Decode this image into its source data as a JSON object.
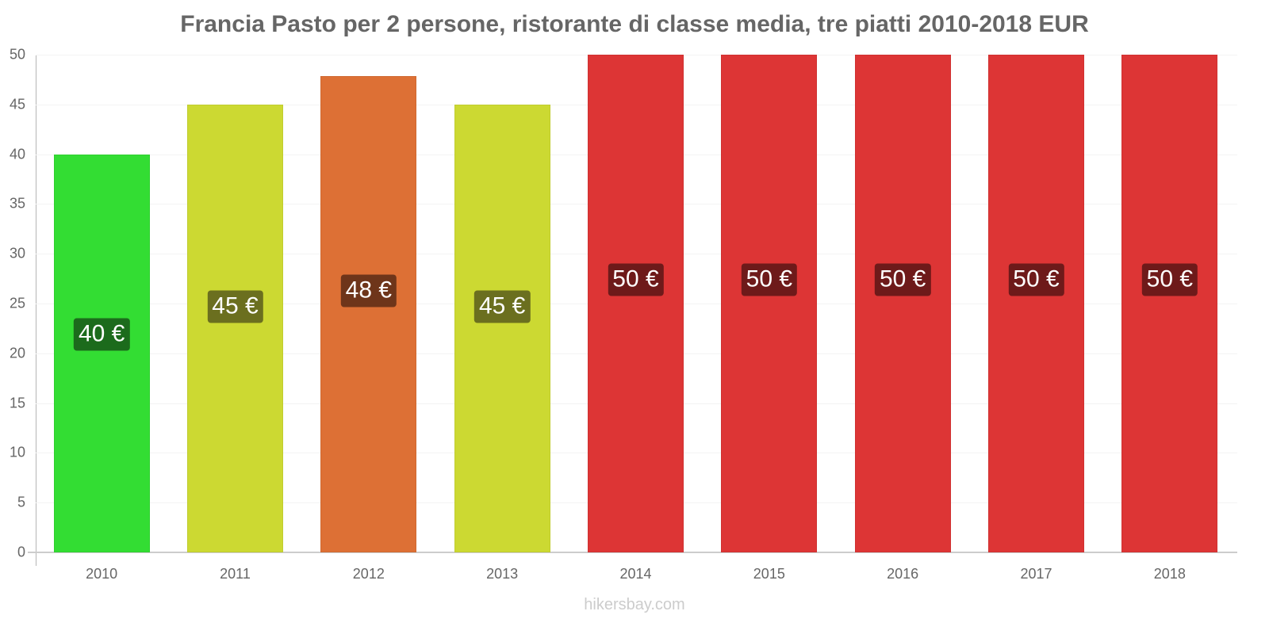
{
  "title": "Francia Pasto per 2 persone, ristorante di classe media, tre piatti 2010-2018 EUR",
  "footer": "hikersbay.com",
  "chart_data": {
    "type": "bar",
    "title": "Francia Pasto per 2 persone, ristorante di classe media, tre piatti 2010-2018 EUR",
    "xlabel": "",
    "ylabel": "",
    "ylim": [
      0,
      50
    ],
    "yticks": [
      0,
      5,
      10,
      15,
      20,
      25,
      30,
      35,
      40,
      45,
      50
    ],
    "grid": true,
    "legend": null,
    "categories": [
      "2010",
      "2011",
      "2012",
      "2013",
      "2014",
      "2015",
      "2016",
      "2017",
      "2018"
    ],
    "values": [
      40,
      45,
      47.85,
      45,
      50,
      50,
      50,
      50,
      50
    ],
    "data_labels": [
      "40 €",
      "45 €",
      "48 €",
      "45 €",
      "50 €",
      "50 €",
      "50 €",
      "50 €",
      "50 €"
    ],
    "bar_colors": [
      "#33dd33",
      "#ccd932",
      "#dd7035",
      "#ccd932",
      "#dd3535",
      "#dd3535",
      "#dd3535",
      "#dd3535",
      "#dd3535"
    ],
    "label_colors": [
      "#1c6b1c",
      "#6b6f1f",
      "#6e351a",
      "#6b6f1f",
      "#6e1a1a",
      "#6e1a1a",
      "#6e1a1a",
      "#6e1a1a",
      "#6e1a1a"
    ]
  }
}
